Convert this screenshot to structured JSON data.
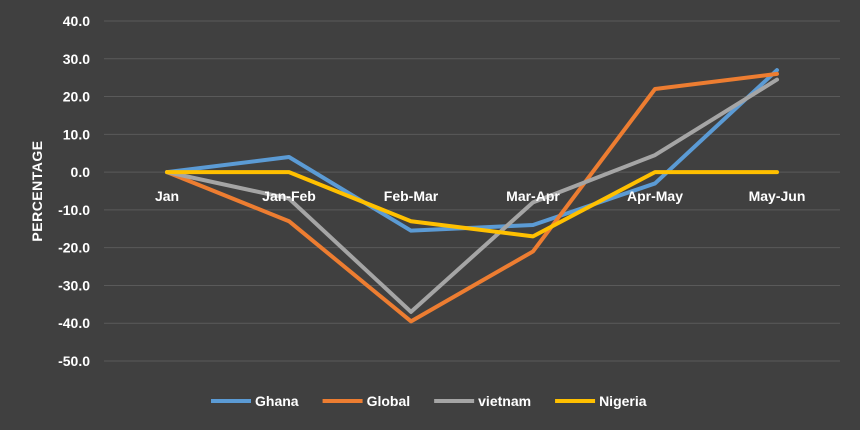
{
  "chart_data": {
    "type": "line",
    "title": "",
    "xlabel": "",
    "ylabel": "PERCENTAGE",
    "categories": [
      "Jan",
      "Jan-Feb",
      "Feb-Mar",
      "Mar-Apr",
      "Apr-May",
      "May-Jun"
    ],
    "ylim": [
      -50,
      40
    ],
    "yticks": [
      "40.0",
      "30.0",
      "20.0",
      "10.0",
      "0.0",
      "-10.0",
      "-20.0",
      "-30.0",
      "-40.0",
      "-50.0"
    ],
    "grid": true,
    "legend_position": "bottom",
    "series": [
      {
        "name": "Ghana",
        "color": "#5b9bd5",
        "values": [
          0,
          4,
          -15.5,
          -14,
          -3,
          27
        ]
      },
      {
        "name": "Global",
        "color": "#ed7d31",
        "values": [
          0,
          -13,
          -39.5,
          -21,
          22,
          26
        ]
      },
      {
        "name": "vietnam",
        "color": "#a5a5a5",
        "values": [
          0,
          -7,
          -37,
          -8,
          4.5,
          24.5
        ]
      },
      {
        "name": "Nigeria",
        "color": "#ffc000",
        "values": [
          0,
          0,
          -13,
          -17,
          0,
          0
        ]
      }
    ]
  }
}
